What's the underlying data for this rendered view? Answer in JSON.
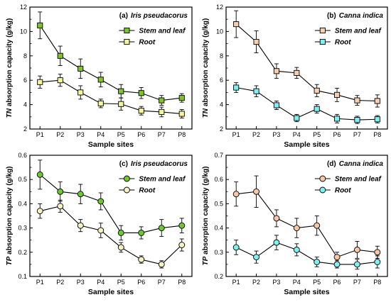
{
  "chart_data": [
    {
      "type": "line",
      "panel_label": "(a)",
      "title": "Iris pseudacorus",
      "xlabel": "Sample sites",
      "ylabel_prefix": "TN",
      "ylabel_rest": " absorption capacity (g/kg)",
      "categories": [
        "P1",
        "P2",
        "P3",
        "P4",
        "P5",
        "P6",
        "P7",
        "P8"
      ],
      "ylim": [
        2,
        12
      ],
      "yticks": [
        "2",
        "4",
        "6",
        "8",
        "10",
        "12"
      ],
      "marker": "square",
      "legend_position": "top-right",
      "series": [
        {
          "name": "Stem and leaf",
          "color": "#7ec427",
          "values": [
            10.5,
            8.0,
            6.95,
            6.05,
            5.1,
            4.95,
            4.35,
            4.55
          ],
          "errors": [
            1.1,
            0.8,
            0.8,
            0.6,
            0.55,
            0.45,
            0.4,
            0.35
          ]
        },
        {
          "name": "Root",
          "color": "#f5f59a",
          "values": [
            5.85,
            6.0,
            5.0,
            4.1,
            4.05,
            3.5,
            3.4,
            3.25
          ],
          "errors": [
            0.5,
            0.5,
            0.55,
            0.35,
            0.5,
            0.35,
            0.4,
            0.35
          ]
        }
      ]
    },
    {
      "type": "line",
      "panel_label": "(b)",
      "title": "Canna indica",
      "xlabel": "Sample sites",
      "ylabel_prefix": "TN",
      "ylabel_rest": " absorption capacity (g/kg)",
      "categories": [
        "P1",
        "P2",
        "P3",
        "P4",
        "P5",
        "P6",
        "P7",
        "P8"
      ],
      "ylim": [
        2,
        12
      ],
      "yticks": [
        "2",
        "4",
        "6",
        "8",
        "10",
        "12"
      ],
      "marker": "square",
      "legend_position": "top-right",
      "series": [
        {
          "name": "Stem and leaf",
          "color": "#f8cfae",
          "values": [
            10.6,
            9.15,
            6.75,
            6.6,
            5.15,
            4.8,
            4.35,
            4.3
          ],
          "errors": [
            1.1,
            0.9,
            0.6,
            0.45,
            0.5,
            0.55,
            0.4,
            0.5
          ]
        },
        {
          "name": "Root",
          "color": "#7ff0f0",
          "values": [
            5.4,
            5.1,
            3.95,
            2.9,
            3.65,
            2.85,
            2.75,
            2.8
          ],
          "errors": [
            0.4,
            0.45,
            0.35,
            0.3,
            0.35,
            0.35,
            0.3,
            0.3
          ]
        }
      ]
    },
    {
      "type": "line",
      "panel_label": "(c)",
      "title": "Iris pseudacorus",
      "xlabel": "Sample sites",
      "ylabel_prefix": "TP",
      "ylabel_rest": " absorption capacity (g/kg)",
      "categories": [
        "P1",
        "P2",
        "P3",
        "P4",
        "P5",
        "P6",
        "P7",
        "P8"
      ],
      "ylim": [
        0.1,
        0.6
      ],
      "yticks": [
        "0.1",
        "0.2",
        "0.3",
        "0.4",
        "0.5",
        "0.6"
      ],
      "marker": "circle",
      "legend_position": "top-right",
      "series": [
        {
          "name": "Stem and leaf",
          "color": "#6ec72d",
          "values": [
            0.52,
            0.45,
            0.44,
            0.41,
            0.28,
            0.28,
            0.3,
            0.31
          ],
          "errors": [
            0.06,
            0.04,
            0.04,
            0.035,
            0.03,
            0.025,
            0.035,
            0.03
          ]
        },
        {
          "name": "Root",
          "color": "#f5f1c2",
          "values": [
            0.37,
            0.39,
            0.31,
            0.29,
            0.22,
            0.17,
            0.15,
            0.23
          ],
          "errors": [
            0.03,
            0.025,
            0.025,
            0.03,
            0.02,
            0.015,
            0.015,
            0.025
          ]
        }
      ]
    },
    {
      "type": "line",
      "panel_label": "(d)",
      "title": "Canna indica",
      "xlabel": "Sample sites",
      "ylabel_prefix": "TP",
      "ylabel_rest": " absorption capacity (g/kg)",
      "categories": [
        "P1",
        "P2",
        "P3",
        "P4",
        "P5",
        "P6",
        "P7",
        "P8"
      ],
      "ylim": [
        0.2,
        0.7
      ],
      "yticks": [
        "0.2",
        "0.3",
        "0.4",
        "0.5",
        "0.6",
        "0.7"
      ],
      "marker": "circle",
      "legend_position": "top-right",
      "series": [
        {
          "name": "Stem and leaf",
          "color": "#f6c6a6",
          "values": [
            0.54,
            0.55,
            0.44,
            0.4,
            0.41,
            0.28,
            0.31,
            0.3
          ],
          "errors": [
            0.05,
            0.065,
            0.035,
            0.04,
            0.04,
            0.02,
            0.035,
            0.025
          ]
        },
        {
          "name": "Root",
          "color": "#7ff0f0",
          "values": [
            0.32,
            0.28,
            0.34,
            0.31,
            0.26,
            0.25,
            0.25,
            0.26
          ],
          "errors": [
            0.03,
            0.025,
            0.03,
            0.025,
            0.02,
            0.015,
            0.02,
            0.025
          ]
        }
      ]
    }
  ]
}
